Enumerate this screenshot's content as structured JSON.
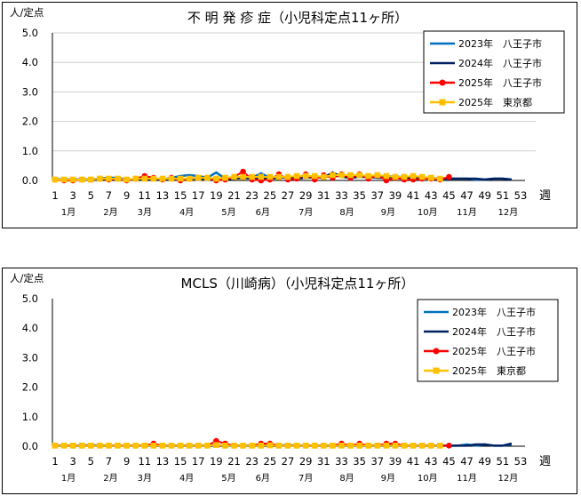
{
  "chart_data": [
    {
      "type": "line",
      "title": "不 明 発 疹 症（小児科定点11ヶ所）",
      "ylabel": "人/定点",
      "xlabel": "週",
      "ylim": [
        0,
        5
      ],
      "yticks": [
        "0.0",
        "1.0",
        "2.0",
        "3.0",
        "4.0",
        "5.0"
      ],
      "xticks": [
        1,
        3,
        5,
        7,
        9,
        11,
        13,
        15,
        17,
        19,
        21,
        23,
        25,
        27,
        29,
        31,
        33,
        35,
        37,
        39,
        41,
        43,
        45,
        47,
        49,
        51,
        53
      ],
      "months": [
        {
          "label": "1月",
          "week": 2.5
        },
        {
          "label": "2月",
          "week": 7.2
        },
        {
          "label": "3月",
          "week": 11
        },
        {
          "label": "4月",
          "week": 15.7
        },
        {
          "label": "5月",
          "week": 20.4
        },
        {
          "label": "6月",
          "week": 24.2
        },
        {
          "label": "7月",
          "week": 29
        },
        {
          "label": "8月",
          "week": 33.6
        },
        {
          "label": "9月",
          "week": 38.2
        },
        {
          "label": "10月",
          "week": 42.6
        },
        {
          "label": "11月",
          "week": 47
        },
        {
          "label": "12月",
          "week": 51.6
        }
      ],
      "grid": true,
      "legend": "top-right",
      "series": [
        {
          "name": "2023年　八王子市",
          "color": "#0070C0",
          "marker": "none",
          "values": [
            0.03,
            0.03,
            0.03,
            0.03,
            0.03,
            0.06,
            0.09,
            0.09,
            0.03,
            0.03,
            0.06,
            0.06,
            0.03,
            0.09,
            0.15,
            0.18,
            0.15,
            0.09,
            0.27,
            0.06,
            0.09,
            0.09,
            0.09,
            0.24,
            0.09,
            0.09,
            0.12,
            0.09,
            0.09,
            0.12,
            0.12,
            0.15,
            0.15,
            0.12,
            0.15,
            0.12,
            0.12,
            0.15,
            0.12,
            0.12,
            0.12,
            0.09,
            0.09,
            0.06,
            0.06,
            0.06,
            0.06,
            0.03,
            0.03,
            0.06,
            0.06,
            0.03
          ]
        },
        {
          "name": "2024年　八王子市",
          "color": "#002060",
          "marker": "none",
          "values": [
            0.03,
            0.03,
            0.03,
            0.03,
            0.03,
            0.03,
            0.03,
            0.03,
            0.03,
            0.03,
            0.03,
            0.06,
            0.03,
            0.03,
            0.03,
            0.06,
            0.06,
            0.06,
            0.06,
            0.03,
            0.06,
            0.09,
            0.06,
            0.06,
            0.06,
            0.09,
            0.12,
            0.06,
            0.09,
            0.12,
            0.09,
            0.27,
            0.12,
            0.09,
            0.12,
            0.12,
            0.09,
            0.09,
            0.12,
            0.09,
            0.06,
            0.09,
            0.06,
            0.06,
            0.06,
            0.06,
            0.06,
            0.06,
            0.03,
            0.06,
            0.06,
            0.03
          ]
        },
        {
          "name": "2025年　八王子市",
          "color": "#FF0000",
          "marker": "circle",
          "values": [
            0.03,
            0,
            0,
            0.03,
            0.03,
            0.06,
            0.03,
            0.06,
            0,
            0.06,
            0.15,
            0.09,
            0.03,
            0.09,
            0,
            0.06,
            0.09,
            0.09,
            0,
            0.03,
            0.12,
            0.3,
            0.03,
            0,
            0.03,
            0.21,
            0.03,
            0.06,
            0.21,
            0.03,
            0.18,
            0.09,
            0.21,
            0.09,
            0.21,
            0.06,
            0.18,
            0,
            0.09,
            0.03,
            0.03,
            0.06,
            0.06,
            0.03,
            0.12
          ]
        },
        {
          "name": "2025年　東京都",
          "color": "#FFC000",
          "marker": "square",
          "values": [
            0.03,
            0.03,
            0.03,
            0.03,
            0.03,
            0.06,
            0.06,
            0.06,
            0.03,
            0.06,
            0.06,
            0.06,
            0.06,
            0.06,
            0.06,
            0.06,
            0.09,
            0.09,
            0.06,
            0.09,
            0.12,
            0.12,
            0.12,
            0.12,
            0.12,
            0.12,
            0.12,
            0.15,
            0.15,
            0.15,
            0.12,
            0.18,
            0.18,
            0.18,
            0.18,
            0.15,
            0.18,
            0.15,
            0.12,
            0.12,
            0.15,
            0.12,
            0.09,
            0.06
          ]
        }
      ]
    },
    {
      "type": "line",
      "title": "MCLS（川崎病）（小児科定点11ヶ所）",
      "ylabel": "人/定点",
      "xlabel": "週",
      "ylim": [
        0,
        5
      ],
      "yticks": [
        "0.0",
        "1.0",
        "2.0",
        "3.0",
        "4.0",
        "5.0"
      ],
      "xticks": [
        1,
        3,
        5,
        7,
        9,
        11,
        13,
        15,
        17,
        19,
        21,
        23,
        25,
        27,
        29,
        31,
        33,
        35,
        37,
        39,
        41,
        43,
        45,
        47,
        49,
        51,
        53
      ],
      "months": [
        {
          "label": "1月",
          "week": 2.5
        },
        {
          "label": "2月",
          "week": 7.2
        },
        {
          "label": "3月",
          "week": 11
        },
        {
          "label": "4月",
          "week": 15.7
        },
        {
          "label": "5月",
          "week": 20.4
        },
        {
          "label": "6月",
          "week": 24.2
        },
        {
          "label": "7月",
          "week": 29
        },
        {
          "label": "8月",
          "week": 33.6
        },
        {
          "label": "9月",
          "week": 38.2
        },
        {
          "label": "10月",
          "week": 42.6
        },
        {
          "label": "11月",
          "week": 47
        },
        {
          "label": "12月",
          "week": 51.6
        }
      ],
      "grid": false,
      "legend": "top-right",
      "series": [
        {
          "name": "2023年　八王子市",
          "color": "#0070C0",
          "marker": "none",
          "values": [
            0.02,
            0.02,
            0.02,
            0.02,
            0.04,
            0.02,
            0.02,
            0.02,
            0.02,
            0.02,
            0.02,
            0.02,
            0.02,
            0.02,
            0.02,
            0.02,
            0.02,
            0.02,
            0.04,
            0.02,
            0.02,
            0.02,
            0.02,
            0.02,
            0.02,
            0.02,
            0.04,
            0.02,
            0.02,
            0.02,
            0.02,
            0.02,
            0.02,
            0.02,
            0.02,
            0.02,
            0.02,
            0.02,
            0.02,
            0.02,
            0.02,
            0.02,
            0.02,
            0.02,
            0.02,
            0.02,
            0.06,
            0.02,
            0.06,
            0.02,
            0.02,
            0.06
          ]
        },
        {
          "name": "2024年　八王子市",
          "color": "#002060",
          "marker": "none",
          "values": [
            0.02,
            0.02,
            0.02,
            0.02,
            0.02,
            0.02,
            0.02,
            0.02,
            0.02,
            0.02,
            0.02,
            0.02,
            0.02,
            0.02,
            0.02,
            0.02,
            0.02,
            0.02,
            0.02,
            0.02,
            0.02,
            0.02,
            0.02,
            0.02,
            0.02,
            0.02,
            0.02,
            0.02,
            0.02,
            0.02,
            0.02,
            0.02,
            0.02,
            0.02,
            0.02,
            0.02,
            0.02,
            0.02,
            0.02,
            0.02,
            0.02,
            0.02,
            0.02,
            0.02,
            0.02,
            0.02,
            0.02,
            0.06,
            0.06,
            0.02,
            0.02,
            0.09
          ]
        },
        {
          "name": "2025年　八王子市",
          "color": "#FF0000",
          "marker": "circle",
          "values": [
            0.02,
            0.02,
            0.02,
            0.02,
            0.02,
            0.02,
            0.02,
            0.02,
            0.02,
            0.02,
            0.02,
            0.09,
            0.02,
            0.02,
            0.02,
            0.02,
            0.02,
            0.02,
            0.18,
            0.09,
            0.02,
            0.02,
            0.02,
            0.09,
            0.09,
            0.02,
            0.02,
            0.02,
            0.02,
            0.02,
            0.02,
            0.02,
            0.09,
            0.02,
            0.09,
            0.02,
            0.02,
            0.09,
            0.09,
            0.02,
            0.02,
            0.02,
            0.02,
            0.02,
            0.02
          ]
        },
        {
          "name": "2025年　東京都",
          "color": "#FFC000",
          "marker": "square",
          "values": [
            0.02,
            0.02,
            0.02,
            0.02,
            0.02,
            0.02,
            0.02,
            0.02,
            0.02,
            0.02,
            0.02,
            0.02,
            0.02,
            0.02,
            0.02,
            0.02,
            0.02,
            0.02,
            0.04,
            0.02,
            0.02,
            0.02,
            0.02,
            0.02,
            0.03,
            0.02,
            0.02,
            0.02,
            0.02,
            0.02,
            0.02,
            0.02,
            0.02,
            0.02,
            0.02,
            0.02,
            0.02,
            0.02,
            0.02,
            0.02,
            0.02,
            0.02,
            0.02,
            0.02
          ]
        }
      ]
    }
  ]
}
